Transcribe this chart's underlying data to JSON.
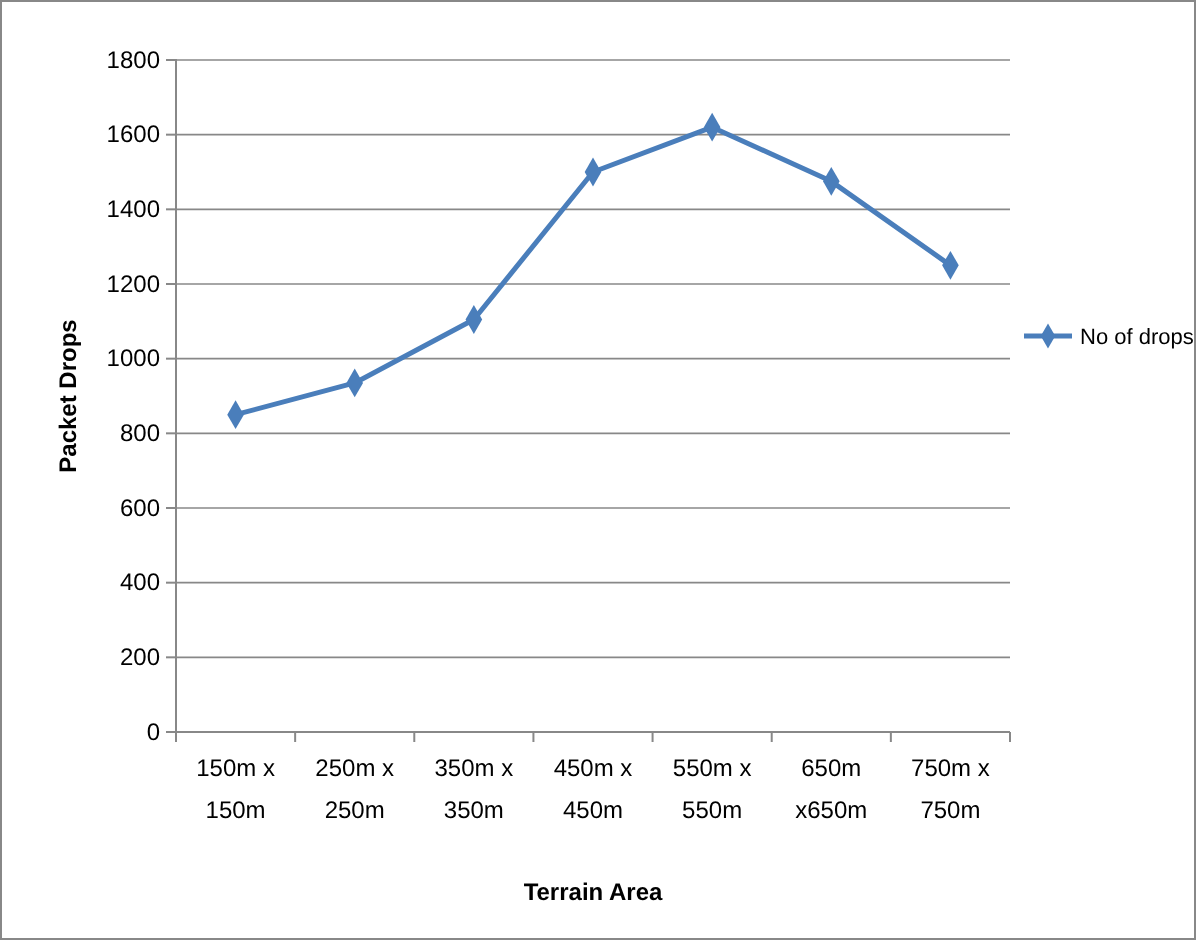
{
  "chart_data": {
    "type": "line",
    "xlabel": "Terrain Area",
    "ylabel": "Packet Drops",
    "categories": [
      "150m x\n150m",
      "250m x\n250m",
      "350m x\n350m",
      "450m x\n450m",
      "550m x\n550m",
      "650m\nx650m",
      "750m x\n750m"
    ],
    "series": [
      {
        "name": "No of drops",
        "color": "#4a7ebb",
        "values": [
          850,
          935,
          1105,
          1500,
          1620,
          1475,
          1250
        ]
      }
    ],
    "ylim": [
      0,
      1800
    ],
    "yticks": [
      0,
      200,
      400,
      600,
      800,
      1000,
      1200,
      1400,
      1600,
      1800
    ],
    "grid": "y",
    "legend": "right",
    "marker": "diamond",
    "line_style": "solid"
  }
}
